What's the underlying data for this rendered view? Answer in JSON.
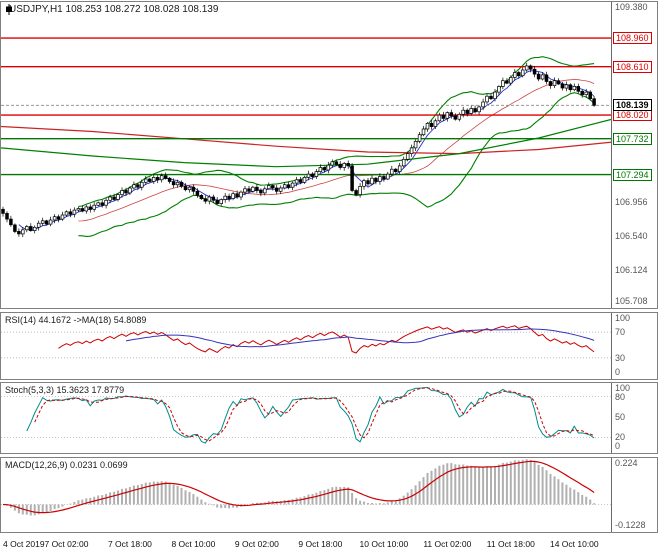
{
  "panels": {
    "main": {
      "title": "USDJPY,H1 108.253 108.272 108.028 108.139"
    },
    "rsi": {
      "label": "RSI(14) 44.1672  ->MA(18) 54.8089"
    },
    "stoch": {
      "label": "Stoch(5,3,3) 15.3623 17.8779"
    },
    "macd": {
      "label": "MACD(12,26,9) 0.0231 0.0699"
    }
  },
  "chart_data": {
    "type": "candlestick",
    "symbol": "USDJPY",
    "timeframe": "H1",
    "last_ohlc": {
      "open": 108.253,
      "high": 108.272,
      "low": 108.028,
      "close": 108.139
    },
    "ylim": [
      105.69,
      109.4
    ],
    "close": [
      106.82,
      106.75,
      106.68,
      106.6,
      106.57,
      106.62,
      106.66,
      106.61,
      106.65,
      106.7,
      106.73,
      106.69,
      106.74,
      106.78,
      106.75,
      106.8,
      106.84,
      106.81,
      106.86,
      106.88,
      106.85,
      106.9,
      106.87,
      106.92,
      106.95,
      106.92,
      106.98,
      107.02,
      106.99,
      107.05,
      107.1,
      107.07,
      107.13,
      107.17,
      107.14,
      107.2,
      107.24,
      107.21,
      107.26,
      107.23,
      107.28,
      107.25,
      107.21,
      107.17,
      107.2,
      107.15,
      107.11,
      107.14,
      107.09,
      107.04,
      107.0,
      106.97,
      107.02,
      106.98,
      106.94,
      106.99,
      107.03,
      107.0,
      107.06,
      107.02,
      107.08,
      107.12,
      107.09,
      107.14,
      107.1,
      107.07,
      107.12,
      107.16,
      107.13,
      107.09,
      107.13,
      107.17,
      107.14,
      107.19,
      107.23,
      107.2,
      107.26,
      107.3,
      107.27,
      107.33,
      107.38,
      107.35,
      107.41,
      107.45,
      107.42,
      107.38,
      107.43,
      107.4,
      107.1,
      107.05,
      107.15,
      107.22,
      107.18,
      107.25,
      107.21,
      107.27,
      107.24,
      107.3,
      107.36,
      107.33,
      107.4,
      107.48,
      107.55,
      107.62,
      107.7,
      107.78,
      107.85,
      107.92,
      107.88,
      107.95,
      108.02,
      107.98,
      108.05,
      108.01,
      107.97,
      108.03,
      108.08,
      108.04,
      108.1,
      108.06,
      108.12,
      108.18,
      108.25,
      108.22,
      108.3,
      108.37,
      108.44,
      108.41,
      108.48,
      108.54,
      108.5,
      108.57,
      108.62,
      108.58,
      108.52,
      108.46,
      108.51,
      108.43,
      108.38,
      108.44,
      108.4,
      108.35,
      108.39,
      108.33,
      108.37,
      108.31,
      108.27,
      108.3,
      108.22,
      108.14
    ],
    "levels": [
      {
        "text": "108.960",
        "value": 108.96,
        "color": "#dd0000"
      },
      {
        "text": "108.610",
        "value": 108.61,
        "color": "#dd0000"
      },
      {
        "text": "108.020",
        "value": 108.02,
        "color": "#dd0000"
      },
      {
        "text": "107.732",
        "value": 107.732,
        "color": "#007700"
      },
      {
        "text": "107.294",
        "value": 107.294,
        "color": "#007700"
      }
    ],
    "current_price": {
      "text": "108.139",
      "value": 108.139,
      "color": "#000000"
    },
    "price_axis_labels": [
      {
        "text": "109.380",
        "value": 109.38
      },
      {
        "text": "106.956",
        "value": 106.956
      },
      {
        "text": "106.540",
        "value": 106.54
      },
      {
        "text": "106.124",
        "value": 106.124
      },
      {
        "text": "105.708",
        "value": 105.708
      }
    ],
    "trend_lines": {
      "red": [
        [
          0,
          107.88
        ],
        [
          0.15,
          107.82
        ],
        [
          0.3,
          107.73
        ],
        [
          0.45,
          107.64
        ],
        [
          0.6,
          107.57
        ],
        [
          0.75,
          107.55
        ],
        [
          0.88,
          107.6
        ],
        [
          1,
          107.69
        ]
      ],
      "green": [
        [
          0,
          107.62
        ],
        [
          0.15,
          107.52
        ],
        [
          0.3,
          107.44
        ],
        [
          0.45,
          107.39
        ],
        [
          0.6,
          107.42
        ],
        [
          0.75,
          107.55
        ],
        [
          0.88,
          107.74
        ],
        [
          1,
          107.97
        ]
      ]
    },
    "indicators": {
      "bollinger": {
        "period": 20,
        "deviation": 2,
        "color": "#008000"
      },
      "ma_fast": {
        "period": 5,
        "color": "#2233cc"
      },
      "rsi": {
        "period": 14,
        "ma_period": 18,
        "value": 44.1672,
        "ma_value": 54.8089,
        "scale": [
          100,
          70,
          30,
          0
        ],
        "levels": [
          70,
          30
        ],
        "range": [
          0,
          100
        ],
        "color": "#cc0000",
        "ma_color": "#3333bb"
      },
      "stoch": {
        "k": 5,
        "d": 3,
        "slowing": 3,
        "value": 15.3623,
        "signal_value": 17.8779,
        "scale": [
          100,
          80,
          50,
          20,
          0
        ],
        "levels": [
          80,
          20
        ],
        "range": [
          0,
          100
        ],
        "color": "#008b8b",
        "signal_color": "#cc0000"
      },
      "macd": {
        "fast": 12,
        "slow": 26,
        "signal": 9,
        "value": 0.0231,
        "signal_value": 0.0699,
        "scale": [
          0.224,
          -0.1228
        ],
        "range": [
          -0.1228,
          0.224
        ],
        "hist_color": "#b0b0b0",
        "signal_color": "#cc0000"
      }
    },
    "x_labels": [
      {
        "text": "4 Oct 2019",
        "bar": 0
      },
      {
        "text": "7 Oct 02:00",
        "bar": 16
      },
      {
        "text": "7 Oct 18:00",
        "bar": 32
      },
      {
        "text": "8 Oct 10:00",
        "bar": 48
      },
      {
        "text": "9 Oct 02:00",
        "bar": 64
      },
      {
        "text": "9 Oct 18:00",
        "bar": 80
      },
      {
        "text": "10 Oct 10:00",
        "bar": 96
      },
      {
        "text": "11 Oct 02:00",
        "bar": 112
      },
      {
        "text": "11 Oct 18:00",
        "bar": 128
      },
      {
        "text": "14 Oct 10:00",
        "bar": 144
      }
    ]
  }
}
